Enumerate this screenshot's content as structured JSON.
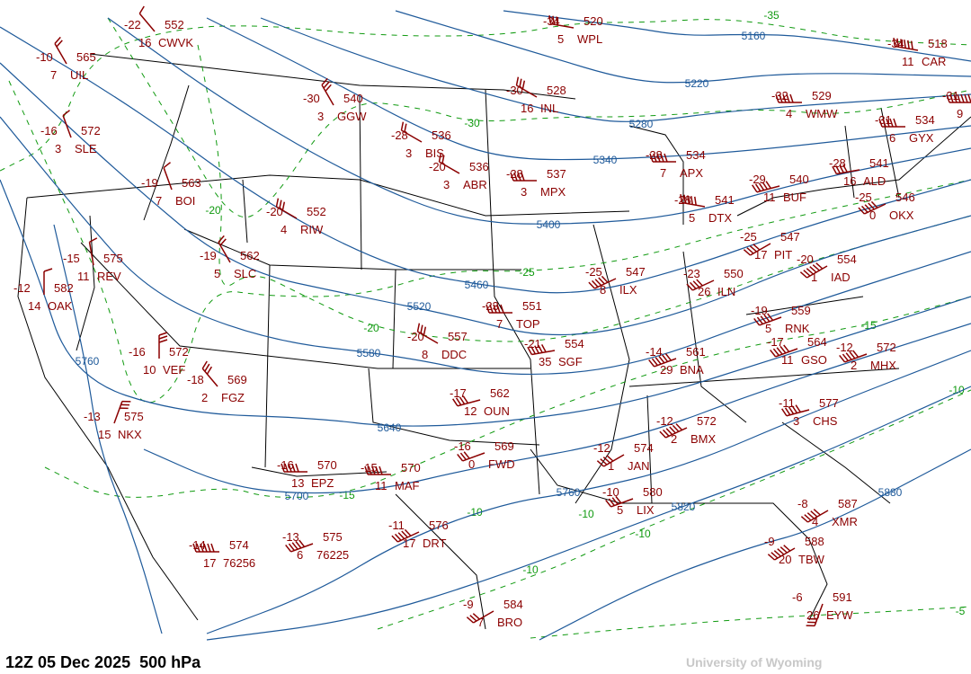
{
  "title": "12Z 05 Dec 2025  500 hPa",
  "credit": "University of Wyoming",
  "colors": {
    "station": "#8b0000",
    "height_contour": "#1f5a9a",
    "temperature_contour": "#109a10",
    "borders": "#000000"
  },
  "height_contour_labels": [
    "5160",
    "5220",
    "5280",
    "5340",
    "5400",
    "5460",
    "5520",
    "5580",
    "5640",
    "5700",
    "5760",
    "5760",
    "5820",
    "5880"
  ],
  "temperature_contour_labels": [
    "-35",
    "-30",
    "-25",
    "-20",
    "-20",
    "-15",
    "-15",
    "-10",
    "-10",
    "-10",
    "-10",
    "-10",
    "-5"
  ],
  "stations": [
    {
      "id": "CWVK",
      "temp": "-22",
      "hgt": "552",
      "dd": "16"
    },
    {
      "id": "UIL",
      "temp": "-10",
      "hgt": "565",
      "dd": "7"
    },
    {
      "id": "SLE",
      "temp": "-16",
      "hgt": "572",
      "dd": "3"
    },
    {
      "id": "BOI",
      "temp": "-19",
      "hgt": "563",
      "dd": "7"
    },
    {
      "id": "GGW",
      "temp": "-30",
      "hgt": "540",
      "dd": "3"
    },
    {
      "id": "BIS",
      "temp": "-28",
      "hgt": "536",
      "dd": "3"
    },
    {
      "id": "ABR",
      "temp": "-20",
      "hgt": "536",
      "dd": "3"
    },
    {
      "id": "INL",
      "temp": "-30",
      "hgt": "528",
      "dd": "16"
    },
    {
      "id": "WPL",
      "temp": "-34",
      "hgt": "520",
      "dd": "5"
    },
    {
      "id": "MPX",
      "temp": "-28",
      "hgt": "537",
      "dd": "3"
    },
    {
      "id": "RIW",
      "temp": "-20",
      "hgt": "552",
      "dd": "4"
    },
    {
      "id": "SLC",
      "temp": "-19",
      "hgt": "562",
      "dd": "5"
    },
    {
      "id": "REV",
      "temp": "-15",
      "hgt": "575",
      "dd": "11"
    },
    {
      "id": "OAK",
      "temp": "-12",
      "hgt": "582",
      "dd": "14"
    },
    {
      "id": "VEF",
      "temp": "-16",
      "hgt": "572",
      "dd": "10"
    },
    {
      "id": "FGZ",
      "temp": "-18",
      "hgt": "569",
      "dd": "2"
    },
    {
      "id": "NKX",
      "temp": "-13",
      "hgt": "575",
      "dd": "15"
    },
    {
      "id": "WMW",
      "temp": "-32",
      "hgt": "529",
      "dd": "4"
    },
    {
      "id": "CAR",
      "temp": "-34",
      "hgt": "518",
      "dd": "11"
    },
    {
      "id": "GYX",
      "temp": "-31",
      "hgt": "534",
      "dd": "6"
    },
    {
      "id": "",
      "temp": "-31",
      "hgt": "",
      "dd": "9"
    },
    {
      "id": "APX",
      "temp": "-28",
      "hgt": "534",
      "dd": "7"
    },
    {
      "id": "DTX",
      "temp": "-28",
      "hgt": "541",
      "dd": "5"
    },
    {
      "id": "BUF",
      "temp": "-29",
      "hgt": "540",
      "dd": "11"
    },
    {
      "id": "ALD",
      "temp": "-28",
      "hgt": "541",
      "dd": "16"
    },
    {
      "id": "OKX",
      "temp": "-25",
      "hgt": "546",
      "dd": "0"
    },
    {
      "id": "PIT",
      "temp": "-25",
      "hgt": "547",
      "dd": "17"
    },
    {
      "id": "IAD",
      "temp": "-20",
      "hgt": "554",
      "dd": "1"
    },
    {
      "id": "ILN",
      "temp": "-23",
      "hgt": "550",
      "dd": "26"
    },
    {
      "id": "ILX",
      "temp": "-25",
      "hgt": "547",
      "dd": "8"
    },
    {
      "id": "TOP",
      "temp": "-23",
      "hgt": "551",
      "dd": "7"
    },
    {
      "id": "DDC",
      "temp": "-20",
      "hgt": "557",
      "dd": "8"
    },
    {
      "id": "SGF",
      "temp": "-21",
      "hgt": "554",
      "dd": "35"
    },
    {
      "id": "OUN",
      "temp": "-17",
      "hgt": "562",
      "dd": "12"
    },
    {
      "id": "BNA",
      "temp": "-14",
      "hgt": "561",
      "dd": "29"
    },
    {
      "id": "RNK",
      "temp": "-19",
      "hgt": "559",
      "dd": "5"
    },
    {
      "id": "GSO",
      "temp": "-17",
      "hgt": "564",
      "dd": "11"
    },
    {
      "id": "MHX",
      "temp": "-12",
      "hgt": "572",
      "dd": "2"
    },
    {
      "id": "CHS",
      "temp": "-11",
      "hgt": "577",
      "dd": "3"
    },
    {
      "id": "BMX",
      "temp": "-12",
      "hgt": "572",
      "dd": "2"
    },
    {
      "id": "JAN",
      "temp": "-12",
      "hgt": "574",
      "dd": "1"
    },
    {
      "id": "FWD",
      "temp": "-16",
      "hgt": "569",
      "dd": "0"
    },
    {
      "id": "EPZ",
      "temp": "-16",
      "hgt": "570",
      "dd": "13"
    },
    {
      "id": "MAF",
      "temp": "-15",
      "hgt": "570",
      "dd": "11"
    },
    {
      "id": "DRT",
      "temp": "-11",
      "hgt": "576",
      "dd": "17"
    },
    {
      "id": "76225",
      "temp": "-13",
      "hgt": "575",
      "dd": "6"
    },
    {
      "id": "76256",
      "temp": "-14",
      "hgt": "574",
      "dd": "17"
    },
    {
      "id": "LIX",
      "temp": "-10",
      "hgt": "580",
      "dd": "5"
    },
    {
      "id": "BRO",
      "temp": "-9",
      "hgt": "584",
      "dd": "7"
    },
    {
      "id": "XMR",
      "temp": "-8",
      "hgt": "587",
      "dd": "4"
    },
    {
      "id": "TBW",
      "temp": "-9",
      "hgt": "588",
      "dd": "20"
    },
    {
      "id": "EYW",
      "temp": "-6",
      "hgt": "591",
      "dd": "26"
    }
  ]
}
